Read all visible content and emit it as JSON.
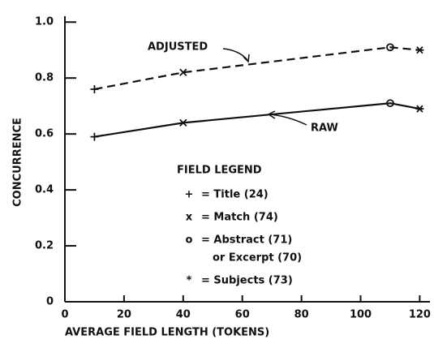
{
  "chart_data": {
    "type": "line",
    "x_label": "AVERAGE FIELD LENGTH (TOKENS)",
    "y_label": "CONCURRENCE",
    "x": [
      10,
      40,
      110,
      120
    ],
    "markers": [
      "+",
      "x",
      "o",
      "*"
    ],
    "series": [
      {
        "name": "ADJUSTED",
        "color": "#111111",
        "dashed": true,
        "values": [
          0.76,
          0.82,
          0.91,
          0.9
        ]
      },
      {
        "name": "RAW",
        "color": "#111111",
        "dashed": false,
        "values": [
          0.59,
          0.64,
          0.71,
          0.69
        ]
      }
    ],
    "xlim": [
      0,
      124
    ],
    "xticks": [
      0,
      20,
      40,
      60,
      80,
      100,
      120
    ],
    "ylim": [
      0,
      1.05
    ],
    "yticks": [
      0,
      {
        "value": 0.2,
        "label": "0.2"
      },
      {
        "value": 0.4,
        "label": "0.4"
      },
      {
        "value": 0.6,
        "label": "0.6"
      },
      {
        "value": 0.8,
        "label": "0.8"
      },
      {
        "value": 1,
        "label": "1.0"
      }
    ],
    "legend": {
      "title": "FIELD LEGEND",
      "entries": [
        {
          "marker": "+",
          "label": "= Title (24)"
        },
        {
          "marker": "x",
          "label": "= Match (74)"
        },
        {
          "marker": "o",
          "label": "= Abstract (71)",
          "label2": "or Excerpt (70)"
        },
        {
          "marker": "*",
          "label": "= Subjects (73)"
        }
      ]
    }
  }
}
